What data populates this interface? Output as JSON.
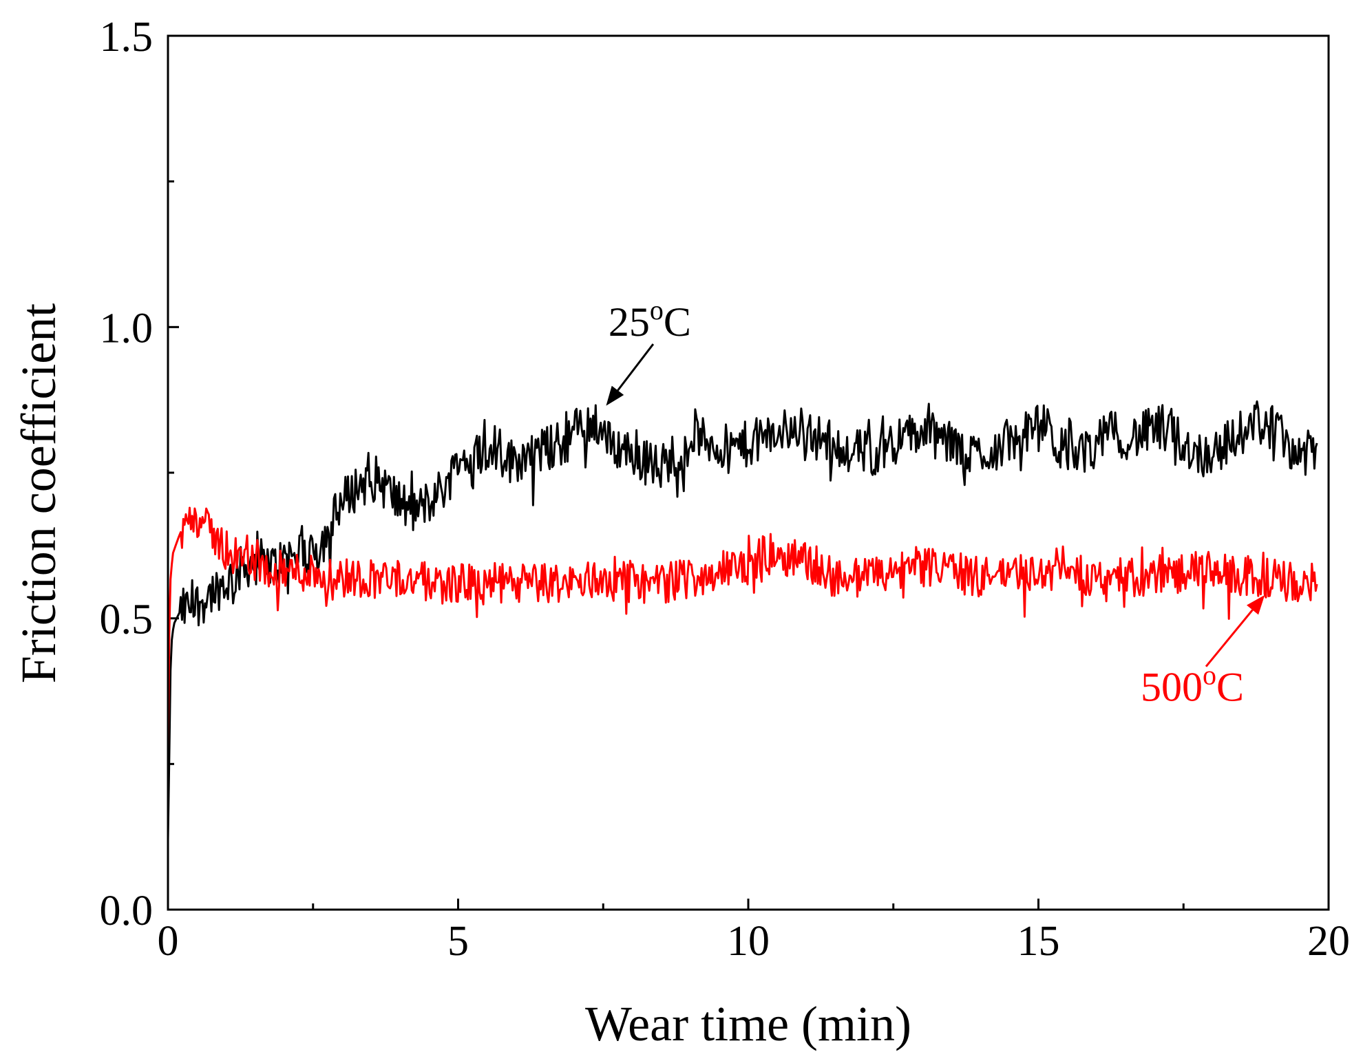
{
  "chart_data": {
    "type": "line",
    "title": "",
    "xlabel": "Wear time (min)",
    "ylabel": "Friction coefficient",
    "xlim": [
      0,
      20
    ],
    "ylim": [
      0,
      1.5
    ],
    "x_ticks": [
      0,
      5,
      10,
      15,
      20
    ],
    "x_tick_labels": [
      "0",
      "5",
      "10",
      "15",
      "20"
    ],
    "y_ticks": [
      0.0,
      0.5,
      1.0,
      1.5
    ],
    "y_tick_labels": [
      "0.0",
      "0.5",
      "1.0",
      "1.5"
    ],
    "x_minor_step": 2.5,
    "y_minor_step": 0.25,
    "grid": false,
    "legend": "none",
    "series": [
      {
        "name": "25°C",
        "label_main": "25",
        "label_sup": "o",
        "label_unit": "C",
        "color": "#000000",
        "x": [
          0,
          0.05,
          0.1,
          0.2,
          0.4,
          0.6,
          0.8,
          1.0,
          1.2,
          1.5,
          1.8,
          2.0,
          2.3,
          2.6,
          2.8,
          3.0,
          3.3,
          3.6,
          3.9,
          4.2,
          4.5,
          4.8,
          5.0,
          5.3,
          5.6,
          5.9,
          6.2,
          6.5,
          6.8,
          7.1,
          7.4,
          7.6,
          7.9,
          8.2,
          8.5,
          8.8,
          9.1,
          9.4,
          9.7,
          10.0,
          10.3,
          10.6,
          10.9,
          11.2,
          11.5,
          11.8,
          12.1,
          12.4,
          12.7,
          13.0,
          13.3,
          13.6,
          13.9,
          14.2,
          14.5,
          14.8,
          15.1,
          15.4,
          15.7,
          16.0,
          16.3,
          16.6,
          16.9,
          17.2,
          17.5,
          17.8,
          18.1,
          18.4,
          18.7,
          19.0,
          19.3,
          19.6,
          19.8
        ],
        "values": [
          0.12,
          0.45,
          0.49,
          0.51,
          0.52,
          0.53,
          0.55,
          0.56,
          0.58,
          0.6,
          0.59,
          0.6,
          0.62,
          0.62,
          0.66,
          0.7,
          0.73,
          0.74,
          0.71,
          0.68,
          0.7,
          0.73,
          0.77,
          0.78,
          0.8,
          0.77,
          0.78,
          0.79,
          0.8,
          0.83,
          0.84,
          0.8,
          0.79,
          0.77,
          0.76,
          0.79,
          0.81,
          0.8,
          0.79,
          0.8,
          0.81,
          0.82,
          0.83,
          0.81,
          0.8,
          0.79,
          0.78,
          0.8,
          0.81,
          0.82,
          0.81,
          0.79,
          0.78,
          0.79,
          0.8,
          0.82,
          0.83,
          0.79,
          0.78,
          0.8,
          0.82,
          0.81,
          0.82,
          0.83,
          0.8,
          0.78,
          0.79,
          0.81,
          0.84,
          0.83,
          0.8,
          0.78,
          0.79
        ],
        "noise_amplitude": 0.04
      },
      {
        "name": "500°C",
        "label_main": "500",
        "label_sup": "o",
        "label_unit": "C",
        "color": "#ff0000",
        "x": [
          0,
          0.03,
          0.08,
          0.15,
          0.3,
          0.45,
          0.6,
          0.8,
          1.0,
          1.3,
          1.6,
          2.0,
          2.5,
          3.0,
          3.5,
          4.0,
          4.5,
          5.0,
          5.5,
          6.0,
          6.5,
          7.0,
          7.5,
          8.0,
          8.5,
          9.0,
          9.5,
          10.0,
          10.3,
          10.6,
          10.9,
          11.2,
          11.5,
          12.0,
          12.5,
          13.0,
          13.5,
          14.0,
          14.5,
          15.0,
          15.5,
          16.0,
          16.5,
          17.0,
          17.5,
          18.0,
          18.5,
          19.0,
          19.4,
          19.8
        ],
        "values": [
          0.27,
          0.55,
          0.61,
          0.63,
          0.67,
          0.68,
          0.66,
          0.64,
          0.62,
          0.6,
          0.59,
          0.58,
          0.58,
          0.57,
          0.57,
          0.57,
          0.56,
          0.56,
          0.56,
          0.56,
          0.56,
          0.56,
          0.57,
          0.56,
          0.56,
          0.57,
          0.58,
          0.59,
          0.61,
          0.61,
          0.6,
          0.59,
          0.57,
          0.57,
          0.58,
          0.59,
          0.58,
          0.57,
          0.58,
          0.58,
          0.59,
          0.57,
          0.57,
          0.57,
          0.58,
          0.58,
          0.57,
          0.57,
          0.56,
          0.56
        ],
        "noise_amplitude": 0.035
      }
    ],
    "annotations": [
      {
        "text": "25°C",
        "series": 0,
        "arrow_to": [
          7.55,
          0.865
        ],
        "label_at": [
          7.65,
          0.985
        ]
      },
      {
        "text": "500°C",
        "series": 1,
        "arrow_to": [
          18.9,
          0.54
        ],
        "label_at": [
          18.6,
          0.37
        ]
      }
    ]
  }
}
